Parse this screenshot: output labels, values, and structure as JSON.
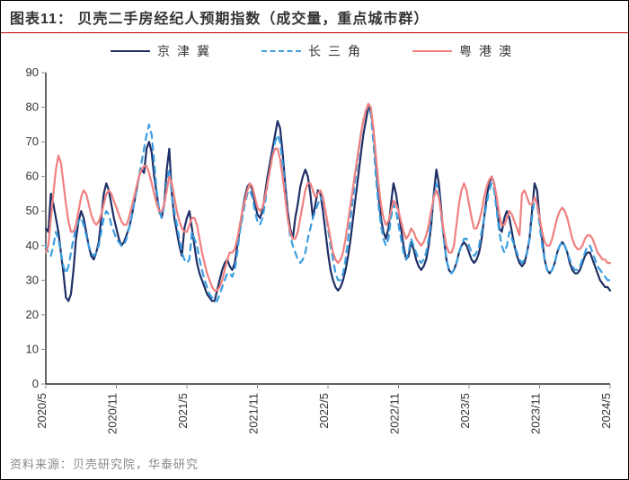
{
  "title": "图表11：  贝壳二手房经纪人预期指数（成交量，重点城市群）",
  "footer": "资料来源：贝壳研究院，华泰研究",
  "chart": {
    "type": "line",
    "background_color": "#ffffff",
    "title_rule_color": "#c00000",
    "axis_color": "#000000",
    "tick_color": "#888888",
    "label_fontsize": 13,
    "title_fontsize": 16,
    "ylim": [
      0,
      90
    ],
    "ytick_step": 10,
    "yticks": [
      0,
      10,
      20,
      30,
      40,
      50,
      60,
      70,
      80,
      90
    ],
    "x_categories": [
      "2020/5",
      "2020/11",
      "2021/5",
      "2021/11",
      "2022/5",
      "2022/11",
      "2023/5",
      "2023/11",
      "2024/5"
    ],
    "x_tick_rotation": -90,
    "n_points": 225,
    "series": [
      {
        "name": "京津冀",
        "color": "#1f2f66",
        "dash": "solid",
        "width": 2.2,
        "values": [
          45,
          44,
          55,
          52,
          48,
          44,
          38,
          32,
          25,
          24,
          26,
          33,
          42,
          47,
          50,
          48,
          44,
          40,
          37,
          36,
          38,
          41,
          48,
          55,
          58,
          56,
          52,
          48,
          45,
          42,
          40,
          41,
          43,
          45,
          48,
          52,
          56,
          60,
          62,
          61,
          68,
          70,
          67,
          60,
          55,
          50,
          48,
          52,
          62,
          68,
          55,
          48,
          44,
          40,
          37,
          45,
          48,
          50,
          45,
          40,
          35,
          32,
          30,
          28,
          26,
          25,
          24,
          24,
          27,
          30,
          33,
          35,
          36,
          34,
          33,
          35,
          40,
          45,
          50,
          54,
          57,
          58,
          56,
          52,
          49,
          48,
          50,
          55,
          60,
          64,
          68,
          72,
          76,
          74,
          67,
          58,
          50,
          45,
          42,
          48,
          52,
          57,
          60,
          62,
          60,
          55,
          48,
          52,
          56,
          55,
          50,
          44,
          38,
          33,
          30,
          28,
          27,
          28,
          30,
          33,
          37,
          42,
          48,
          54,
          60,
          66,
          72,
          76,
          80,
          79,
          74,
          64,
          55,
          48,
          44,
          42,
          45,
          52,
          58,
          55,
          50,
          45,
          40,
          36,
          37,
          41,
          39,
          36,
          34,
          33,
          34,
          36,
          40,
          46,
          55,
          62,
          58,
          50,
          42,
          36,
          33,
          32,
          33,
          35,
          38,
          40,
          41,
          40,
          38,
          36,
          35,
          36,
          38,
          42,
          48,
          54,
          58,
          60,
          58,
          52,
          45,
          44,
          48,
          50,
          48,
          44,
          40,
          37,
          35,
          34,
          35,
          38,
          42,
          50,
          58,
          56,
          48,
          42,
          36,
          33,
          32,
          33,
          35,
          38,
          40,
          41,
          40,
          38,
          35,
          33,
          32,
          32,
          33,
          35,
          37,
          38,
          38,
          36,
          34,
          32,
          30,
          29,
          28,
          28,
          27
        ]
      },
      {
        "name": "长三角",
        "color": "#3c9ee0",
        "dash": "dashed",
        "width": 2.2,
        "values": [
          40,
          38,
          37,
          40,
          44,
          42,
          38,
          34,
          32,
          34,
          38,
          42,
          45,
          47,
          48,
          46,
          43,
          40,
          38,
          37,
          38,
          40,
          44,
          48,
          50,
          49,
          46,
          44,
          42,
          41,
          40,
          40,
          42,
          45,
          48,
          52,
          56,
          60,
          64,
          68,
          72,
          75,
          72,
          64,
          56,
          50,
          48,
          52,
          58,
          62,
          55,
          50,
          46,
          42,
          38,
          36,
          35,
          36,
          44,
          42,
          40,
          36,
          33,
          30,
          28,
          26,
          25,
          24,
          24,
          26,
          28,
          30,
          32,
          32,
          31,
          33,
          38,
          44,
          48,
          52,
          55,
          56,
          54,
          50,
          47,
          46,
          48,
          52,
          58,
          62,
          66,
          70,
          72,
          70,
          64,
          56,
          48,
          43,
          40,
          38,
          36,
          35,
          36,
          38,
          42,
          45,
          48,
          50,
          52,
          54,
          53,
          50,
          45,
          40,
          36,
          32,
          30,
          30,
          32,
          36,
          42,
          48,
          54,
          60,
          66,
          72,
          76,
          79,
          80,
          78,
          70,
          60,
          52,
          46,
          42,
          40,
          42,
          48,
          52,
          50,
          46,
          42,
          38,
          36,
          38,
          42,
          40,
          38,
          36,
          35,
          36,
          38,
          42,
          48,
          54,
          58,
          55,
          48,
          42,
          36,
          33,
          32,
          33,
          35,
          38,
          40,
          42,
          42,
          40,
          38,
          37,
          38,
          40,
          44,
          48,
          52,
          56,
          58,
          56,
          50,
          44,
          40,
          38,
          40,
          44,
          42,
          40,
          38,
          36,
          35,
          36,
          38,
          42,
          48,
          54,
          52,
          46,
          40,
          36,
          33,
          32,
          33,
          35,
          38,
          40,
          41,
          40,
          38,
          36,
          34,
          33,
          33,
          34,
          36,
          38,
          40,
          40,
          38,
          36,
          34,
          33,
          32,
          31,
          30,
          30
        ]
      },
      {
        "name": "粤港澳",
        "color": "#f08080",
        "dash": "solid",
        "width": 2.2,
        "values": [
          38,
          40,
          48,
          55,
          62,
          66,
          64,
          58,
          52,
          47,
          44,
          44,
          46,
          50,
          54,
          56,
          55,
          52,
          49,
          47,
          46,
          47,
          49,
          52,
          55,
          56,
          55,
          53,
          51,
          49,
          47,
          46,
          46,
          48,
          51,
          54,
          57,
          60,
          62,
          63,
          63,
          61,
          58,
          55,
          52,
          50,
          50,
          52,
          56,
          60,
          58,
          54,
          50,
          47,
          45,
          44,
          44,
          46,
          48,
          48,
          46,
          42,
          38,
          35,
          32,
          30,
          28,
          27,
          27,
          28,
          30,
          33,
          36,
          38,
          38,
          39,
          42,
          46,
          50,
          53,
          56,
          58,
          57,
          54,
          51,
          50,
          51,
          54,
          58,
          62,
          66,
          68,
          68,
          65,
          60,
          54,
          48,
          44,
          42,
          42,
          44,
          48,
          52,
          56,
          58,
          58,
          56,
          54,
          55,
          56,
          54,
          50,
          46,
          42,
          38,
          36,
          35,
          36,
          38,
          42,
          47,
          52,
          57,
          62,
          67,
          72,
          76,
          79,
          81,
          80,
          74,
          66,
          58,
          52,
          48,
          46,
          47,
          50,
          53,
          52,
          50,
          47,
          44,
          42,
          43,
          45,
          44,
          42,
          41,
          40,
          41,
          43,
          46,
          50,
          54,
          56,
          54,
          49,
          44,
          40,
          38,
          38,
          40,
          46,
          52,
          56,
          58,
          56,
          52,
          48,
          45,
          45,
          47,
          50,
          54,
          57,
          59,
          60,
          58,
          54,
          49,
          46,
          46,
          48,
          50,
          49,
          47,
          45,
          43,
          55,
          56,
          54,
          52,
          52,
          54,
          52,
          48,
          44,
          41,
          40,
          40,
          42,
          45,
          48,
          50,
          51,
          50,
          48,
          45,
          42,
          40,
          39,
          39,
          40,
          42,
          43,
          43,
          42,
          40,
          38,
          37,
          36,
          36,
          35,
          35
        ]
      }
    ]
  }
}
